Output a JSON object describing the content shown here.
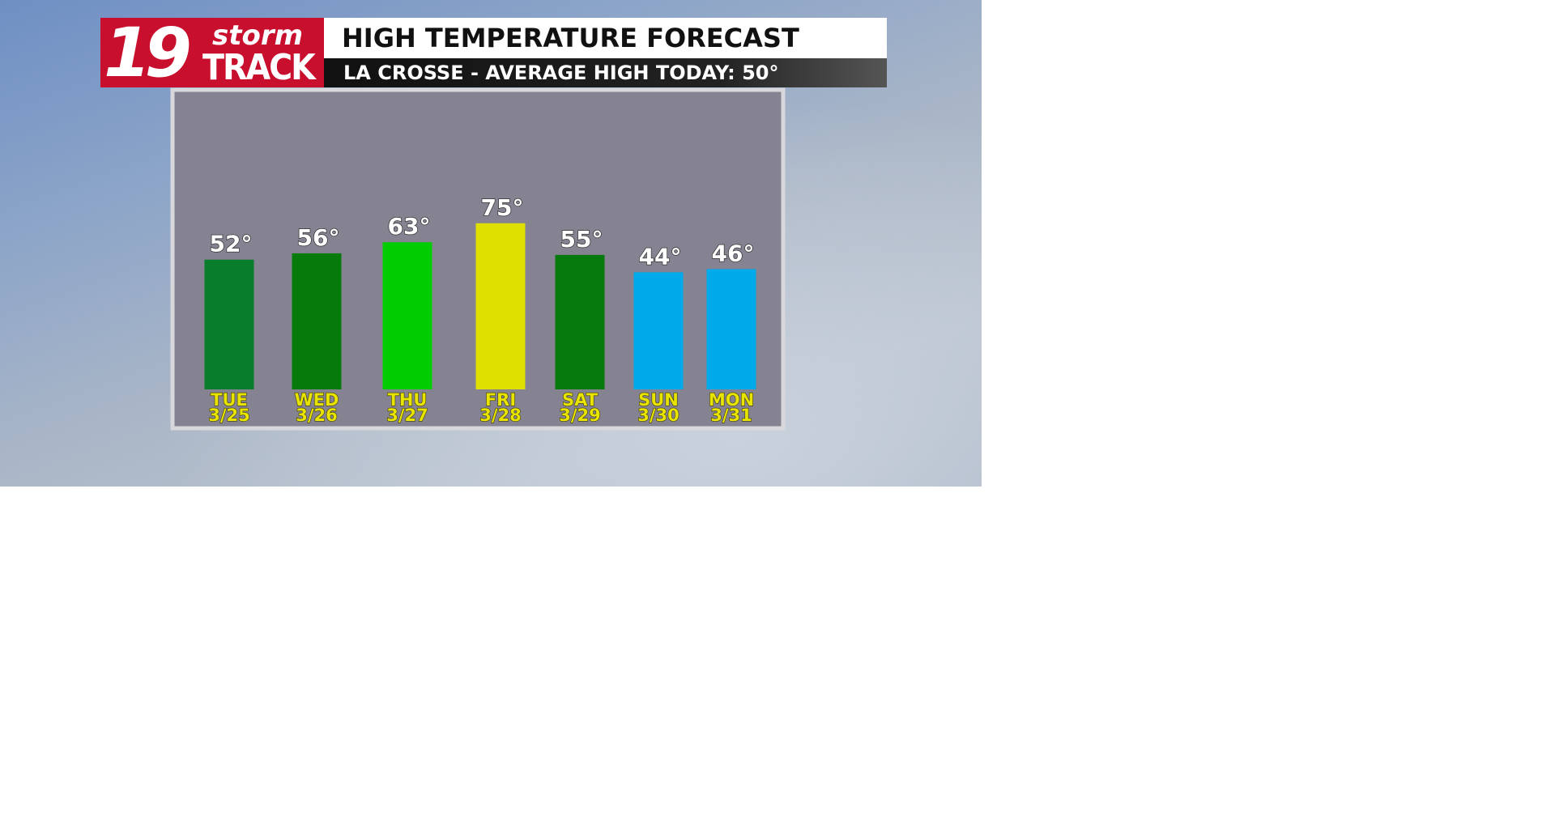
{
  "header": {
    "logo_number": "19",
    "logo_word1": "storm",
    "logo_word2": "TRACK",
    "title": "HIGH TEMPERATURE FORECAST",
    "subtitle": "LA CROSSE - AVERAGE HIGH TODAY: 50°"
  },
  "chart_data": {
    "type": "bar",
    "categories": [
      "TUE",
      "WED",
      "THU",
      "FRI",
      "SAT",
      "SUN",
      "MON"
    ],
    "dates": [
      "3/25",
      "3/26",
      "3/27",
      "3/28",
      "3/29",
      "3/30",
      "3/31"
    ],
    "values": [
      52,
      56,
      63,
      75,
      55,
      44,
      46
    ],
    "value_labels": [
      "52°",
      "56°",
      "63°",
      "75°",
      "55°",
      "44°",
      "46°"
    ],
    "colors": [
      "#087d2b",
      "#077a0c",
      "#00cc00",
      "#e0e000",
      "#067a0c",
      "#00aaea",
      "#00aaea"
    ],
    "ylim": [
      -30,
      80
    ]
  }
}
